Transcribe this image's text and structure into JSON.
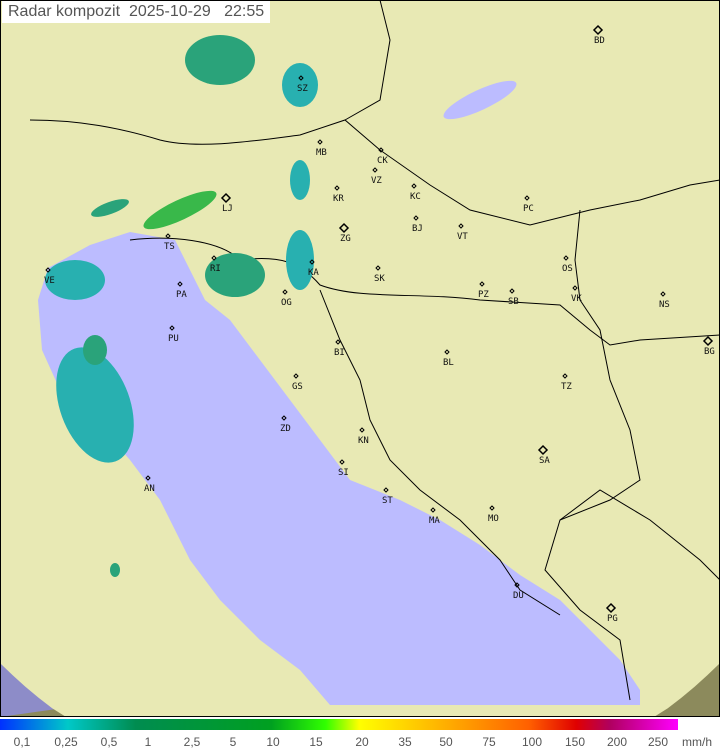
{
  "title": {
    "label": "Radar kompozit",
    "date": "2025-10-29",
    "time": "22:55"
  },
  "legend": {
    "unit": "mm/h",
    "values": [
      "0,1",
      "0,25",
      "0,5",
      "1",
      "2,5",
      "5",
      "10",
      "15",
      "20",
      "35",
      "50",
      "75",
      "100",
      "150",
      "200",
      "250"
    ],
    "colors": [
      "#0030ff",
      "#00c8c8",
      "#008c50",
      "#00a020",
      "#30ff00",
      "#ffff00",
      "#ffa000",
      "#ff6000",
      "#e00000",
      "#b00060",
      "#ff00ff"
    ]
  },
  "map": {
    "colors": {
      "land": "#e8e9b4",
      "sea": "#bcbcff",
      "outside": "#8c8a5c",
      "border": "#000000"
    },
    "cities": [
      "BD",
      "SZ",
      "MB",
      "CK",
      "VZ",
      "KR",
      "KC",
      "LJ",
      "PC",
      "BJ",
      "VT",
      "TS",
      "ZG",
      "OS",
      "KA",
      "SK",
      "VE",
      "RI",
      "PA",
      "PZ",
      "SB",
      "VK",
      "NS",
      "OG",
      "PU",
      "BI",
      "BG",
      "BL",
      "GS",
      "TZ",
      "ZD",
      "KN",
      "SA",
      "AN",
      "SI",
      "ST",
      "MA",
      "MO",
      "DU",
      "PG"
    ]
  }
}
